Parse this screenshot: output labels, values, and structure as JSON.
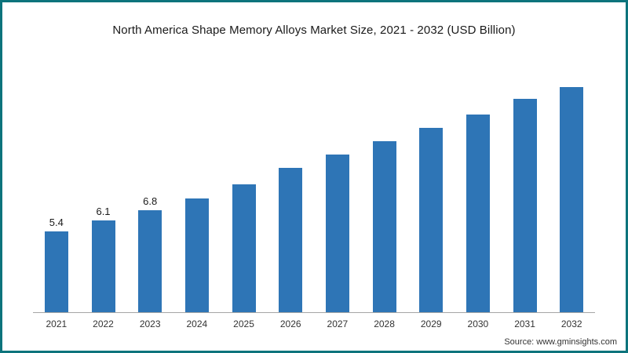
{
  "chart_data": {
    "type": "bar",
    "title": "North America Shape Memory Alloys Market Size, 2021 - 2032 (USD Billion)",
    "categories": [
      "2021",
      "2022",
      "2023",
      "2024",
      "2025",
      "2026",
      "2027",
      "2028",
      "2029",
      "2030",
      "2031",
      "2032"
    ],
    "values": [
      5.4,
      6.1,
      6.8,
      7.6,
      8.5,
      9.6,
      10.5,
      11.4,
      12.3,
      13.2,
      14.2,
      15.1
    ],
    "data_labels": [
      "5.4",
      "6.1",
      "6.8",
      "",
      "",
      "",
      "",
      "",
      "",
      "",
      "",
      ""
    ],
    "xlabel": "",
    "ylabel": "",
    "ylim": [
      0,
      16
    ],
    "grid": false,
    "legend": false,
    "bar_color": "#2e75b6"
  },
  "source": {
    "label": "Source: www.gminsights.com"
  },
  "frame": {
    "border_color": "#0d747c"
  }
}
